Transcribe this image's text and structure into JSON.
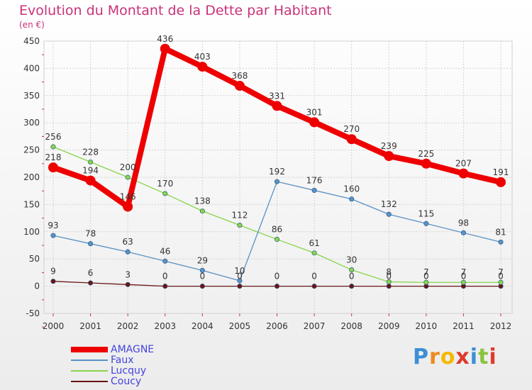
{
  "chart_data": {
    "type": "line",
    "title": "Evolution du Montant de la Dette par Habitant",
    "subtitle": "(en €)",
    "x": [
      "2000",
      "2001",
      "2002",
      "2003",
      "2004",
      "2005",
      "2006",
      "2007",
      "2008",
      "2009",
      "2010",
      "2011",
      "2012"
    ],
    "ylim": [
      -50,
      450
    ],
    "yticks": [
      -50,
      0,
      50,
      100,
      150,
      200,
      250,
      300,
      350,
      400,
      450
    ],
    "grid": true,
    "legend_position": "bottom-left",
    "series": [
      {
        "name": "AMAGNE",
        "color": "#ee0000",
        "values": [
          218,
          194,
          146,
          436,
          403,
          368,
          331,
          301,
          270,
          239,
          225,
          207,
          191
        ]
      },
      {
        "name": "Faux",
        "color": "#5a92c4",
        "values": [
          93,
          78,
          63,
          46,
          29,
          10,
          192,
          176,
          160,
          132,
          115,
          98,
          81
        ]
      },
      {
        "name": "Lucquy",
        "color": "#88d54a",
        "values": [
          256,
          228,
          200,
          170,
          138,
          112,
          86,
          61,
          30,
          8,
          7,
          7,
          7
        ]
      },
      {
        "name": "Coucy",
        "color": "#6a1515",
        "values": [
          9,
          6,
          3,
          0,
          0,
          0,
          0,
          0,
          0,
          0,
          0,
          0,
          0
        ]
      }
    ]
  },
  "logo": {
    "letters": [
      "P",
      "r",
      "o",
      "x",
      "i",
      "t",
      "i"
    ],
    "colors": [
      "#3b8fd6",
      "#f08a1c",
      "#f5b800",
      "#e03a2c",
      "#3b8fd6",
      "#8ac43f",
      "#e03a2c"
    ]
  }
}
